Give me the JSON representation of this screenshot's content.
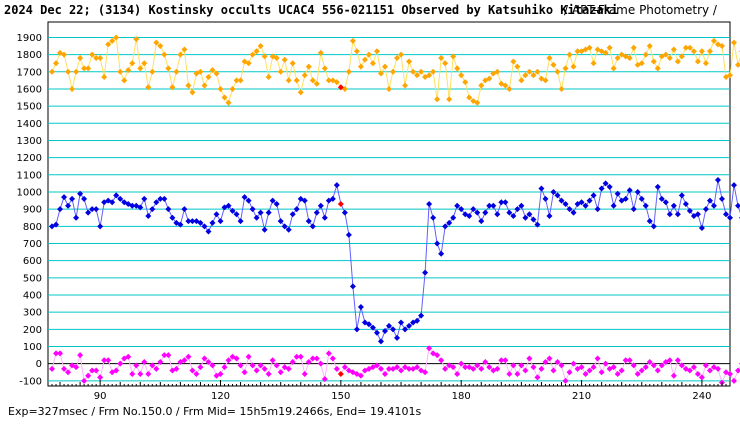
{
  "chart_data": {
    "type": "line",
    "title": "2024 Dec 22; (3134) Kostinsky occults UCAC4 556-021151 Observed by Katsuhiko Kitazaki",
    "subtitle": "/ APT-Frame Photometry /",
    "footer": "Exp=327msec / Frm No.150.0 / Frm Mid= 15h5m19.2466s, End= 19.4101s",
    "xlabel": "",
    "ylabel": "",
    "xlim": [
      77,
      247
    ],
    "ylim": [
      -130,
      1990
    ],
    "x_ticks": [
      90,
      120,
      150,
      180,
      210,
      240
    ],
    "y_ticks": [
      -100,
      0,
      100,
      200,
      300,
      400,
      500,
      600,
      700,
      800,
      900,
      1000,
      1100,
      1200,
      1300,
      1400,
      1500,
      1600,
      1700,
      1800,
      1900
    ],
    "grid": true,
    "colors": {
      "grid": "#00c8c8",
      "target": "#0000e0",
      "target_line": "#6060ff",
      "comparison": "#ffa500",
      "comparison_line": "#ffe060",
      "difference": "#ff00ff",
      "difference_line": "#ffb0ff",
      "marker": "#ff0000",
      "zero_line": "#000000"
    },
    "x_start": 78,
    "x_step": 1,
    "marker_x": 150,
    "series": [
      {
        "role": "comparison",
        "values": [
          1700,
          1750,
          1810,
          1800,
          1700,
          1600,
          1700,
          1780,
          1720,
          1720,
          1800,
          1780,
          1780,
          1670,
          1860,
          1880,
          1900,
          1700,
          1650,
          1710,
          1750,
          1890,
          1720,
          1750,
          1610,
          1700,
          1870,
          1850,
          1800,
          1720,
          1610,
          1700,
          1800,
          1830,
          1620,
          1580,
          1690,
          1700,
          1620,
          1670,
          1710,
          1690,
          1600,
          1550,
          1520,
          1600,
          1650,
          1650,
          1760,
          1750,
          1800,
          1820,
          1850,
          1790,
          1670,
          1790,
          1780,
          1700,
          1770,
          1650,
          1750,
          1650,
          1580,
          1680,
          1730,
          1650,
          1630,
          1810,
          1720,
          1650,
          1650,
          1640,
          1610,
          1600,
          1700,
          1880,
          1820,
          1730,
          1770,
          1800,
          1750,
          1820,
          1690,
          1730,
          1600,
          1700,
          1780,
          1800,
          1620,
          1760,
          1700,
          1680,
          1700,
          1670,
          1680,
          1700,
          1540,
          1780,
          1750,
          1540,
          1790,
          1720,
          1680,
          1640,
          1550,
          1530,
          1520,
          1620,
          1650,
          1660,
          1690,
          1700,
          1630,
          1620,
          1600,
          1760,
          1730,
          1650,
          1680,
          1700,
          1680,
          1700,
          1660,
          1650,
          1780,
          1740,
          1700,
          1600,
          1720,
          1800,
          1730,
          1820,
          1820,
          1830,
          1840,
          1750,
          1830,
          1820,
          1810,
          1840,
          1720,
          1780,
          1800,
          1790,
          1780,
          1840,
          1740,
          1750,
          1800,
          1850,
          1760,
          1720,
          1790,
          1800,
          1780,
          1830,
          1760,
          1790,
          1840,
          1840,
          1820,
          1760,
          1820,
          1750,
          1820,
          1880,
          1860,
          1850,
          1670,
          1680,
          1870,
          1740,
          1820,
          1790,
          1780,
          1760,
          1710,
          1800,
          1780,
          1850,
          1800,
          1790,
          1690,
          1840,
          1840,
          1800,
          1830,
          1790,
          1820,
          1800,
          1850,
          1950,
          1800,
          1850,
          1760
        ]
      },
      {
        "role": "target",
        "values": [
          800,
          810,
          900,
          970,
          920,
          960,
          850,
          990,
          960,
          880,
          900,
          900,
          800,
          940,
          950,
          940,
          980,
          960,
          940,
          930,
          920,
          920,
          910,
          960,
          860,
          900,
          940,
          960,
          960,
          900,
          850,
          820,
          810,
          900,
          830,
          830,
          830,
          820,
          800,
          770,
          820,
          870,
          830,
          910,
          920,
          890,
          870,
          830,
          970,
          950,
          900,
          850,
          880,
          780,
          880,
          950,
          930,
          830,
          800,
          780,
          870,
          900,
          960,
          950,
          830,
          800,
          880,
          920,
          850,
          950,
          960,
          1040,
          930,
          880,
          750,
          450,
          200,
          330,
          240,
          230,
          210,
          180,
          130,
          190,
          220,
          200,
          150,
          240,
          200,
          220,
          240,
          250,
          280,
          530,
          930,
          850,
          700,
          640,
          800,
          820,
          850,
          920,
          900,
          870,
          860,
          900,
          880,
          830,
          880,
          920,
          920,
          870,
          940,
          940,
          880,
          860,
          900,
          920,
          850,
          870,
          840,
          810,
          1020,
          960,
          860,
          1000,
          980,
          950,
          930,
          900,
          880,
          930,
          940,
          920,
          950,
          980,
          900,
          1020,
          1050,
          1030,
          920,
          990,
          950,
          960,
          1010,
          900,
          1000,
          960,
          920,
          830,
          800,
          1030,
          960,
          940,
          870,
          920,
          870,
          980,
          930,
          890,
          860,
          870,
          790,
          900,
          950,
          920,
          1070,
          960,
          870,
          850,
          1040,
          920,
          850,
          900,
          880,
          920,
          1060,
          990,
          1000,
          880,
          1040,
          1100,
          930,
          900,
          910,
          890,
          880,
          900,
          860,
          880,
          950,
          920,
          970,
          930,
          1000,
          960,
          980,
          920,
          900,
          980,
          960,
          860,
          1020,
          1080,
          960,
          890,
          940,
          870,
          940,
          1060,
          1000,
          880,
          900
        ]
      },
      {
        "role": "difference",
        "values": [
          -30,
          60,
          60,
          -30,
          -50,
          -10,
          -20,
          50,
          -100,
          -70,
          -40,
          -40,
          -80,
          20,
          20,
          -50,
          -40,
          0,
          30,
          40,
          -60,
          -10,
          -60,
          10,
          -60,
          -10,
          -30,
          10,
          50,
          50,
          -40,
          -30,
          10,
          20,
          40,
          -40,
          -60,
          -20,
          30,
          10,
          -10,
          -70,
          -60,
          -20,
          20,
          40,
          30,
          -10,
          -50,
          40,
          -10,
          -40,
          -10,
          -30,
          -60,
          20,
          -10,
          -50,
          -20,
          -30,
          10,
          40,
          40,
          -60,
          10,
          30,
          30,
          0,
          -90,
          60,
          30,
          -30,
          -60,
          -20,
          -40,
          -50,
          -60,
          -70,
          -40,
          -30,
          -20,
          -10,
          -30,
          -60,
          -30,
          -30,
          -20,
          -40,
          -20,
          -30,
          -30,
          -20,
          -40,
          -50,
          90,
          60,
          50,
          20,
          -30,
          -10,
          -20,
          -60,
          0,
          -20,
          -20,
          -30,
          -10,
          -30,
          10,
          -20,
          -40,
          -30,
          20,
          20,
          -60,
          -10,
          -60,
          -10,
          -40,
          30,
          -20,
          -80,
          -30,
          10,
          30,
          -40,
          10,
          -10,
          -100,
          -50,
          0,
          -30,
          -20,
          -60,
          -40,
          -20,
          30,
          -50,
          0,
          -30,
          -20,
          -60,
          -40,
          20,
          20,
          -10,
          -60,
          -40,
          -20,
          10,
          -10,
          -40,
          -10,
          10,
          20,
          -70,
          20,
          -10,
          -30,
          -40,
          -20,
          -60,
          -80,
          -10,
          -40,
          -20,
          -30,
          -110,
          -50,
          -60,
          -100,
          -40,
          0,
          -60,
          -50,
          -60,
          -20,
          20,
          -40,
          -30,
          10,
          -30,
          -60,
          30,
          10,
          20,
          60,
          40,
          40,
          -40,
          10,
          -10,
          -40,
          -30,
          60,
          70,
          -60,
          -60,
          -30,
          30,
          20,
          -20,
          -40,
          -40,
          -60
        ]
      }
    ]
  }
}
